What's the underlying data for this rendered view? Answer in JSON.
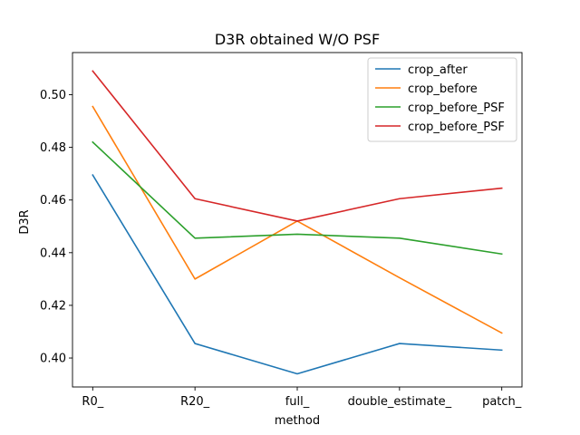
{
  "chart_data": {
    "type": "line",
    "title": "D3R obtained W/O PSF",
    "xlabel": "method",
    "ylabel": "D3R",
    "categories": [
      "R0_",
      "R20_",
      "full_",
      "double_estimate_",
      "patch_"
    ],
    "ylim": [
      0.389,
      0.516
    ],
    "yticks": [
      0.4,
      0.42,
      0.44,
      0.46,
      0.48,
      0.5
    ],
    "ytick_labels": [
      "0.40",
      "0.42",
      "0.44",
      "0.46",
      "0.48",
      "0.50"
    ],
    "grid": false,
    "legend_position": "upper right",
    "series": [
      {
        "name": "crop_after",
        "color": "#1f77b4",
        "values": [
          0.4695,
          0.4055,
          0.394,
          0.4055,
          0.403
        ]
      },
      {
        "name": "crop_before",
        "color": "#ff7f0e",
        "values": [
          0.4955,
          0.43,
          0.452,
          0.4305,
          0.4095
        ]
      },
      {
        "name": "crop_before_PSF",
        "color": "#2ca02c",
        "values": [
          0.482,
          0.4455,
          0.447,
          0.4455,
          0.4395
        ]
      },
      {
        "name": "crop_before_PSF",
        "color": "#d62728",
        "values": [
          0.509,
          0.4605,
          0.452,
          0.4605,
          0.4645
        ]
      }
    ]
  }
}
